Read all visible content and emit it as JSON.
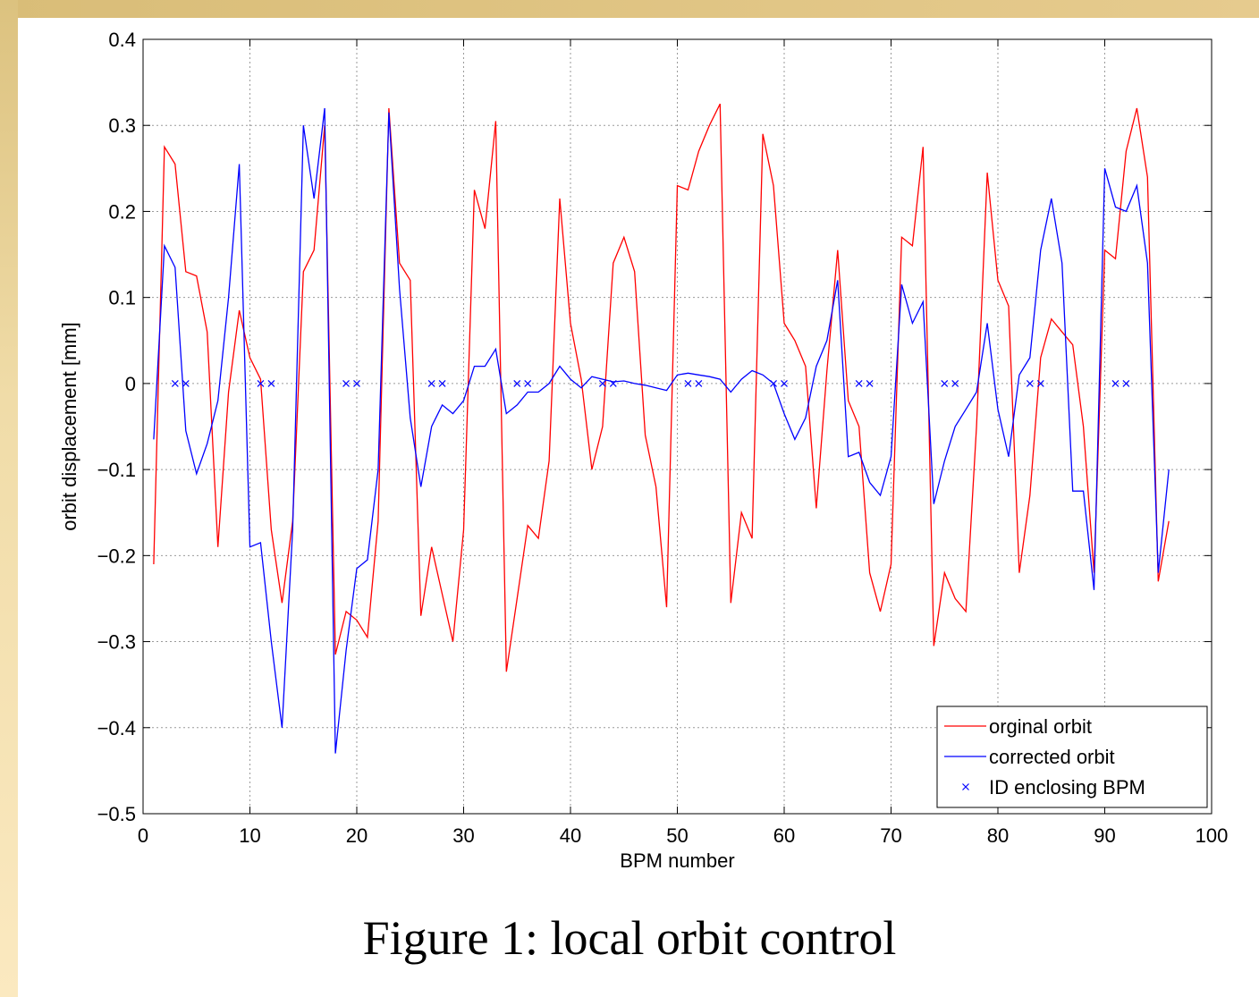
{
  "figure_caption": "Figure 1: local orbit control",
  "colors": {
    "original": "#ff0000",
    "corrected": "#0000ff",
    "id_marker": "#0000ff",
    "grid": "#9a9a9a",
    "axis": "#000000"
  },
  "chart_data": {
    "type": "line",
    "xlabel": "BPM number",
    "ylabel": "orbit displacement [mm]",
    "xlim": [
      0,
      100
    ],
    "ylim": [
      -0.5,
      0.4
    ],
    "xticks": [
      "0",
      "10",
      "20",
      "30",
      "40",
      "50",
      "60",
      "70",
      "80",
      "90",
      "100"
    ],
    "yticks": [
      "0.4",
      "0.3",
      "0.2",
      "0.1",
      "0",
      "−0.1",
      "−0.2",
      "−0.3",
      "−0.4",
      "−0.5"
    ],
    "grid": true,
    "legend_position": "bottom-right",
    "series": [
      {
        "name": "orginal orbit",
        "color": "#ff0000",
        "style": "line",
        "x": [
          1,
          2,
          3,
          4,
          5,
          6,
          7,
          8,
          9,
          10,
          11,
          12,
          13,
          14,
          15,
          16,
          17,
          18,
          19,
          20,
          21,
          22,
          23,
          24,
          25,
          26,
          27,
          28,
          29,
          30,
          31,
          32,
          33,
          34,
          35,
          36,
          37,
          38,
          39,
          40,
          41,
          42,
          43,
          44,
          45,
          46,
          47,
          48,
          49,
          50,
          51,
          52,
          53,
          54,
          55,
          56,
          57,
          58,
          59,
          60,
          61,
          62,
          63,
          64,
          65,
          66,
          67,
          68,
          69,
          70,
          71,
          72,
          73,
          74,
          75,
          76,
          77,
          78,
          79,
          80,
          81,
          82,
          83,
          84,
          85,
          86,
          87,
          88,
          89,
          90,
          91,
          92,
          93,
          94,
          95,
          96
        ],
        "y": [
          -0.21,
          0.275,
          0.255,
          0.13,
          0.125,
          0.06,
          -0.19,
          -0.01,
          0.085,
          0.03,
          0.005,
          -0.17,
          -0.255,
          -0.16,
          0.13,
          0.155,
          0.3,
          -0.315,
          -0.265,
          -0.275,
          -0.295,
          -0.16,
          0.32,
          0.14,
          0.12,
          -0.27,
          -0.19,
          -0.245,
          -0.3,
          -0.17,
          0.225,
          0.18,
          0.305,
          -0.335,
          -0.25,
          -0.165,
          -0.18,
          -0.09,
          0.215,
          0.07,
          0.005,
          -0.1,
          -0.05,
          0.14,
          0.17,
          0.13,
          -0.06,
          -0.12,
          -0.26,
          0.23,
          0.225,
          0.27,
          0.3,
          0.325,
          -0.255,
          -0.15,
          -0.18,
          0.29,
          0.23,
          0.07,
          0.05,
          0.02,
          -0.145,
          0.015,
          0.155,
          -0.02,
          -0.05,
          -0.22,
          -0.265,
          -0.21,
          0.17,
          0.16,
          0.275,
          -0.305,
          -0.22,
          -0.25,
          -0.265,
          -0.05,
          0.245,
          0.12,
          0.09,
          -0.22,
          -0.13,
          0.03,
          0.075,
          0.06,
          0.045,
          -0.05,
          -0.22,
          0.155,
          0.145,
          0.27,
          0.32,
          0.24,
          -0.23,
          -0.16
        ]
      },
      {
        "name": "corrected orbit",
        "color": "#0000ff",
        "style": "line",
        "x": [
          1,
          2,
          3,
          4,
          5,
          6,
          7,
          8,
          9,
          10,
          11,
          12,
          13,
          14,
          15,
          16,
          17,
          18,
          19,
          20,
          21,
          22,
          23,
          24,
          25,
          26,
          27,
          28,
          29,
          30,
          31,
          32,
          33,
          34,
          35,
          36,
          37,
          38,
          39,
          40,
          41,
          42,
          43,
          44,
          45,
          46,
          47,
          48,
          49,
          50,
          51,
          52,
          53,
          54,
          55,
          56,
          57,
          58,
          59,
          60,
          61,
          62,
          63,
          64,
          65,
          66,
          67,
          68,
          69,
          70,
          71,
          72,
          73,
          74,
          75,
          76,
          77,
          78,
          79,
          80,
          81,
          82,
          83,
          84,
          85,
          86,
          87,
          88,
          89,
          90,
          91,
          92,
          93,
          94,
          95,
          96
        ],
        "y": [
          -0.065,
          0.16,
          0.135,
          -0.055,
          -0.105,
          -0.07,
          -0.02,
          0.1,
          0.255,
          -0.19,
          -0.185,
          -0.3,
          -0.4,
          -0.17,
          0.3,
          0.215,
          0.32,
          -0.43,
          -0.31,
          -0.215,
          -0.205,
          -0.1,
          0.315,
          0.11,
          -0.04,
          -0.12,
          -0.05,
          -0.025,
          -0.035,
          -0.02,
          0.02,
          0.02,
          0.04,
          -0.035,
          -0.025,
          -0.01,
          -0.01,
          0.0,
          0.02,
          0.005,
          -0.005,
          0.008,
          0.005,
          0.002,
          0.003,
          0.0,
          -0.002,
          -0.005,
          -0.008,
          0.01,
          0.012,
          0.01,
          0.008,
          0.005,
          -0.01,
          0.005,
          0.015,
          0.01,
          0.0,
          -0.035,
          -0.065,
          -0.04,
          0.02,
          0.05,
          0.12,
          -0.085,
          -0.08,
          -0.115,
          -0.13,
          -0.085,
          0.115,
          0.07,
          0.095,
          -0.14,
          -0.09,
          -0.05,
          -0.03,
          -0.01,
          0.07,
          -0.03,
          -0.085,
          0.01,
          0.03,
          0.155,
          0.215,
          0.14,
          -0.125,
          -0.125,
          -0.24,
          0.25,
          0.205,
          0.2,
          0.23,
          0.14,
          -0.22,
          -0.1
        ]
      },
      {
        "name": "ID enclosing BPM",
        "color": "#0000ff",
        "style": "marker",
        "marker": "x",
        "x": [
          3,
          4,
          11,
          12,
          19,
          20,
          27,
          28,
          35,
          36,
          43,
          44,
          51,
          52,
          59,
          60,
          67,
          68,
          75,
          76,
          83,
          84,
          91,
          92
        ],
        "y": [
          0,
          0,
          0,
          0,
          0,
          0,
          0,
          0,
          0,
          0,
          0,
          0,
          0,
          0,
          0,
          0,
          0,
          0,
          0,
          0,
          0,
          0,
          0,
          0
        ]
      }
    ]
  }
}
